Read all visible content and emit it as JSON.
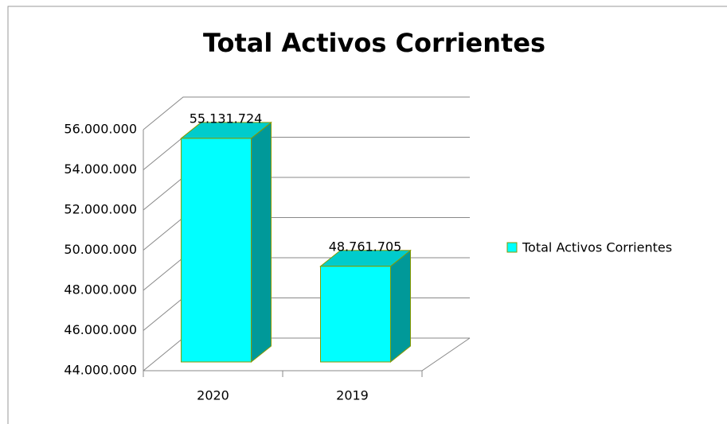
{
  "chart_data": {
    "type": "bar3d",
    "title": "Total Activos Corrientes",
    "categories": [
      "2020",
      "2019"
    ],
    "series": [
      {
        "name": "Total Activos Corrientes",
        "color": "#00ffff",
        "values": [
          55131724,
          48761705
        ],
        "value_labels": [
          "55.131.724",
          "48.761.705"
        ]
      }
    ],
    "ylim": [
      44000000,
      56000000
    ],
    "yticks": [
      {
        "value": 44000000,
        "label": "44.000.000"
      },
      {
        "value": 46000000,
        "label": "46.000.000"
      },
      {
        "value": 48000000,
        "label": "48.000.000"
      },
      {
        "value": 50000000,
        "label": "50.000.000"
      },
      {
        "value": 52000000,
        "label": "52.000.000"
      },
      {
        "value": 54000000,
        "label": "54.000.000"
      },
      {
        "value": 56000000,
        "label": "56.000.000"
      }
    ],
    "grid": true,
    "legend": "right"
  }
}
